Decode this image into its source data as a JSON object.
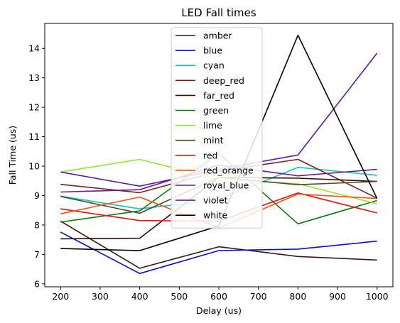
{
  "chart_data": {
    "type": "line",
    "title": "LED Fall times",
    "xlabel": "Delay (us)",
    "ylabel": "Fall Time (us)",
    "x": [
      200,
      400,
      600,
      800,
      1000
    ],
    "xlim": [
      160,
      1040
    ],
    "ylim": [
      5.9,
      14.85
    ],
    "xticks": [
      200,
      300,
      400,
      500,
      600,
      700,
      800,
      900,
      1000
    ],
    "yticks": [
      6,
      7,
      8,
      9,
      10,
      11,
      12,
      13,
      14
    ],
    "grid": false,
    "legend_position": "top-center",
    "series": [
      {
        "name": "amber",
        "color": "#3b1a0e",
        "values": [
          8.13,
          6.53,
          7.26,
          6.93,
          6.81
        ]
      },
      {
        "name": "blue",
        "color": "#0a0adc",
        "values": [
          7.76,
          6.35,
          7.13,
          7.18,
          7.45
        ]
      },
      {
        "name": "cyan",
        "color": "#14c4c4",
        "values": [
          8.98,
          8.55,
          8.86,
          9.96,
          9.69
        ]
      },
      {
        "name": "deep_red",
        "color": "#7a2222",
        "values": [
          9.38,
          9.1,
          9.83,
          10.23,
          8.91
        ]
      },
      {
        "name": "far_red",
        "color": "#3a0a0a",
        "values": [
          7.53,
          7.55,
          9.62,
          9.59,
          9.48
        ]
      },
      {
        "name": "green",
        "color": "#0b7d0b",
        "values": [
          8.1,
          8.48,
          10.43,
          8.04,
          8.83
        ]
      },
      {
        "name": "lime",
        "color": "#8ee82d",
        "values": [
          9.8,
          10.23,
          9.56,
          9.4,
          8.72
        ]
      },
      {
        "name": "mint",
        "color": "#4a4a2a",
        "values": [
          8.97,
          8.4,
          9.62,
          9.37,
          9.48
        ]
      },
      {
        "name": "red",
        "color": "#ee1111",
        "values": [
          8.55,
          8.15,
          8.13,
          9.09,
          8.41
        ]
      },
      {
        "name": "red_orange",
        "color": "#ee5511",
        "values": [
          8.38,
          8.95,
          7.9,
          9.05,
          8.9
        ]
      },
      {
        "name": "royal_blue",
        "color": "#5a1ab4",
        "values": [
          9.8,
          9.32,
          9.89,
          10.38,
          13.84
        ]
      },
      {
        "name": "violet",
        "color": "#6a1a8a",
        "values": [
          9.12,
          9.2,
          10.04,
          9.67,
          9.89
        ]
      },
      {
        "name": "white",
        "color": "#000000",
        "values": [
          7.2,
          7.13,
          7.97,
          14.45,
          8.9
        ]
      }
    ]
  }
}
